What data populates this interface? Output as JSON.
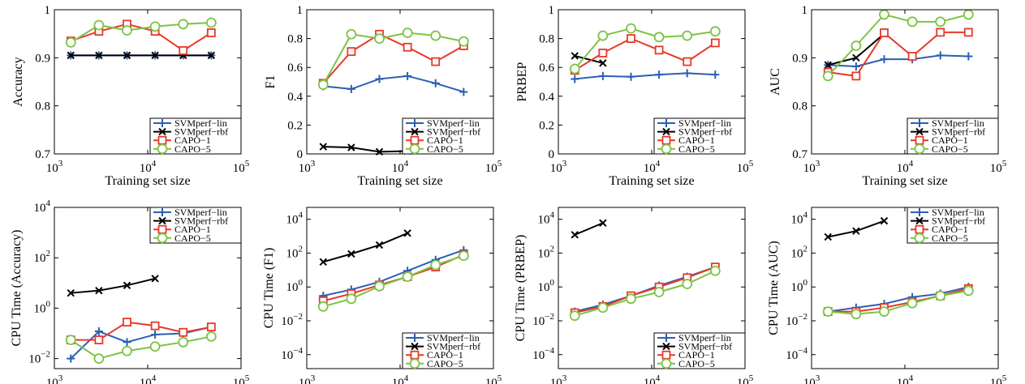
{
  "chart_data": [
    {
      "type": "line",
      "ylabel": "Accuracy",
      "xlabel": "Training set size",
      "log_x": true,
      "log_y": false,
      "legend": "lower right",
      "x": [
        1500,
        3000,
        6000,
        12000,
        24000,
        48000
      ],
      "xlim": [
        1000,
        100000
      ],
      "xticks": [
        {
          "value": 1000,
          "label": "10",
          "sup": "3"
        },
        {
          "value": 10000,
          "label": "10",
          "sup": "4"
        },
        {
          "value": 100000,
          "label": "10",
          "sup": "5"
        }
      ],
      "ylim": [
        0.7,
        1
      ],
      "yticks": [
        0.7,
        0.8,
        0.9,
        1
      ],
      "series": [
        {
          "name": "SVMperf−lin",
          "color": "#2b5fb4",
          "marker": "plus",
          "values": [
            0.905,
            0.905,
            0.905,
            0.905,
            0.905,
            0.905
          ]
        },
        {
          "name": "SVMperf−rbf",
          "color": "#000000",
          "marker": "cross",
          "values": [
            0.905,
            0.905,
            0.905,
            0.905,
            0.905,
            0.905
          ]
        },
        {
          "name": "CAPO−1",
          "color": "#e8392a",
          "marker": "square",
          "values": [
            0.935,
            0.955,
            0.97,
            0.955,
            0.915,
            0.952
          ]
        },
        {
          "name": "CAPO−5",
          "color": "#7cc444",
          "marker": "circle",
          "values": [
            0.932,
            0.968,
            0.957,
            0.965,
            0.97,
            0.973
          ]
        }
      ]
    },
    {
      "type": "line",
      "ylabel": "F1",
      "xlabel": "Training set size",
      "log_x": true,
      "log_y": false,
      "legend": "lower right",
      "x": [
        1500,
        3000,
        6000,
        12000,
        24000,
        48000
      ],
      "xlim": [
        1000,
        100000
      ],
      "xticks": [
        {
          "value": 1000,
          "label": "10",
          "sup": "3"
        },
        {
          "value": 10000,
          "label": "10",
          "sup": "4"
        },
        {
          "value": 100000,
          "label": "10",
          "sup": "5"
        }
      ],
      "ylim": [
        0,
        1
      ],
      "yticks": [
        0,
        0.2,
        0.4,
        0.6,
        0.8,
        1
      ],
      "series": [
        {
          "name": "SVMperf−lin",
          "color": "#2b5fb4",
          "marker": "plus",
          "values": [
            0.47,
            0.45,
            0.52,
            0.54,
            0.49,
            0.43
          ]
        },
        {
          "name": "SVMperf−rbf",
          "color": "#000000",
          "marker": "cross",
          "values": [
            0.05,
            0.045,
            0.015,
            0.02,
            null,
            null
          ]
        },
        {
          "name": "CAPO−1",
          "color": "#e8392a",
          "marker": "square",
          "values": [
            0.49,
            0.71,
            0.83,
            0.74,
            0.64,
            0.75
          ]
        },
        {
          "name": "CAPO−5",
          "color": "#7cc444",
          "marker": "circle",
          "values": [
            0.48,
            0.83,
            0.8,
            0.84,
            0.82,
            0.78
          ]
        }
      ]
    },
    {
      "type": "line",
      "ylabel": "PRBEP",
      "xlabel": "Training set size",
      "log_x": true,
      "log_y": false,
      "legend": "lower right",
      "x": [
        1500,
        3000,
        6000,
        12000,
        24000,
        48000
      ],
      "xlim": [
        1000,
        100000
      ],
      "xticks": [
        {
          "value": 1000,
          "label": "10",
          "sup": "3"
        },
        {
          "value": 10000,
          "label": "10",
          "sup": "4"
        },
        {
          "value": 100000,
          "label": "10",
          "sup": "5"
        }
      ],
      "ylim": [
        0,
        1
      ],
      "yticks": [
        0,
        0.2,
        0.4,
        0.6,
        0.8,
        1
      ],
      "series": [
        {
          "name": "SVMperf−lin",
          "color": "#2b5fb4",
          "marker": "plus",
          "values": [
            0.52,
            0.54,
            0.535,
            0.55,
            0.56,
            0.55
          ]
        },
        {
          "name": "SVMperf−rbf",
          "color": "#000000",
          "marker": "cross",
          "values": [
            0.68,
            0.63,
            null,
            null,
            null,
            null
          ]
        },
        {
          "name": "CAPO−1",
          "color": "#e8392a",
          "marker": "square",
          "values": [
            0.58,
            0.7,
            0.8,
            0.72,
            0.64,
            0.77
          ]
        },
        {
          "name": "CAPO−5",
          "color": "#7cc444",
          "marker": "circle",
          "values": [
            0.59,
            0.82,
            0.87,
            0.81,
            0.82,
            0.85
          ]
        }
      ]
    },
    {
      "type": "line",
      "ylabel": "AUC",
      "xlabel": "Training set size",
      "log_x": true,
      "log_y": false,
      "legend": "lower right",
      "x": [
        1500,
        3000,
        6000,
        12000,
        24000,
        48000
      ],
      "xlim": [
        1000,
        100000
      ],
      "xticks": [
        {
          "value": 1000,
          "label": "10",
          "sup": "3"
        },
        {
          "value": 10000,
          "label": "10",
          "sup": "4"
        },
        {
          "value": 100000,
          "label": "10",
          "sup": "5"
        }
      ],
      "ylim": [
        0.7,
        1
      ],
      "yticks": [
        0.7,
        0.8,
        0.9,
        1
      ],
      "series": [
        {
          "name": "SVMperf−lin",
          "color": "#2b5fb4",
          "marker": "plus",
          "values": [
            0.885,
            0.882,
            0.897,
            0.897,
            0.905,
            0.903
          ]
        },
        {
          "name": "SVMperf−rbf",
          "color": "#000000",
          "marker": "cross",
          "values": [
            0.885,
            0.9,
            0.95,
            null,
            null,
            null
          ]
        },
        {
          "name": "CAPO−1",
          "color": "#e8392a",
          "marker": "square",
          "values": [
            0.87,
            0.862,
            0.952,
            0.903,
            0.953,
            0.953
          ]
        },
        {
          "name": "CAPO−5",
          "color": "#7cc444",
          "marker": "circle",
          "values": [
            0.862,
            0.925,
            0.99,
            0.975,
            0.975,
            0.99
          ]
        }
      ]
    },
    {
      "type": "line",
      "ylabel": "CPU Time (Accuracy)",
      "xlabel": "Training set size",
      "log_x": true,
      "log_y": true,
      "legend": "upper right",
      "x": [
        1500,
        3000,
        6000,
        12000,
        24000,
        48000
      ],
      "xlim": [
        1000,
        100000
      ],
      "xticks": [
        {
          "value": 1000,
          "label": "10",
          "sup": "3"
        },
        {
          "value": 10000,
          "label": "10",
          "sup": "4"
        },
        {
          "value": 100000,
          "label": "10",
          "sup": "5"
        }
      ],
      "ylim": [
        0.004,
        10000
      ],
      "yticks": [
        {
          "value": 0.01,
          "label": "10",
          "sup": "−2"
        },
        {
          "value": 1,
          "label": "10",
          "sup": "0"
        },
        {
          "value": 100,
          "label": "10",
          "sup": "2"
        },
        {
          "value": 10000,
          "label": "10",
          "sup": "4"
        }
      ],
      "series": [
        {
          "name": "SVMperf−lin",
          "color": "#2b5fb4",
          "marker": "plus",
          "values": [
            0.01,
            0.12,
            0.045,
            0.09,
            0.1,
            0.18
          ]
        },
        {
          "name": "SVMperf−rbf",
          "color": "#000000",
          "marker": "cross",
          "values": [
            4,
            5,
            8,
            15,
            null,
            null
          ]
        },
        {
          "name": "CAPO−1",
          "color": "#e8392a",
          "marker": "square",
          "values": [
            0.055,
            0.055,
            0.28,
            0.2,
            0.11,
            0.18
          ]
        },
        {
          "name": "CAPO−5",
          "color": "#7cc444",
          "marker": "circle",
          "values": [
            0.055,
            0.01,
            0.02,
            0.03,
            0.045,
            0.075
          ]
        }
      ]
    },
    {
      "type": "line",
      "ylabel": "CPU Time (F1)",
      "xlabel": "Training set size",
      "log_x": true,
      "log_y": true,
      "legend": "lower right",
      "x": [
        1500,
        3000,
        6000,
        12000,
        24000,
        48000
      ],
      "xlim": [
        1000,
        100000
      ],
      "xticks": [
        {
          "value": 1000,
          "label": "10",
          "sup": "3"
        },
        {
          "value": 10000,
          "label": "10",
          "sup": "4"
        },
        {
          "value": 100000,
          "label": "10",
          "sup": "5"
        }
      ],
      "ylim": [
        1.5e-05,
        50000
      ],
      "yticks": [
        {
          "value": 0.0001,
          "label": "10",
          "sup": "−4"
        },
        {
          "value": 0.01,
          "label": "10",
          "sup": "−2"
        },
        {
          "value": 1,
          "label": "10",
          "sup": "0"
        },
        {
          "value": 100,
          "label": "10",
          "sup": "2"
        },
        {
          "value": 10000,
          "label": "10",
          "sup": "4"
        }
      ],
      "series": [
        {
          "name": "SVMperf−lin",
          "color": "#2b5fb4",
          "marker": "plus",
          "values": [
            0.3,
            0.7,
            2,
            9,
            40,
            150
          ]
        },
        {
          "name": "SVMperf−rbf",
          "color": "#000000",
          "marker": "cross",
          "values": [
            30,
            90,
            300,
            1500,
            null,
            null
          ]
        },
        {
          "name": "CAPO−1",
          "color": "#e8392a",
          "marker": "square",
          "values": [
            0.15,
            0.4,
            1.3,
            4,
            15,
            80
          ]
        },
        {
          "name": "CAPO−5",
          "color": "#7cc444",
          "marker": "circle",
          "values": [
            0.07,
            0.2,
            1.1,
            4,
            20,
            70
          ]
        }
      ]
    },
    {
      "type": "line",
      "ylabel": "CPU Time (PRBEP)",
      "xlabel": "Training set size",
      "log_x": true,
      "log_y": true,
      "legend": "lower right",
      "x": [
        1500,
        3000,
        6000,
        12000,
        24000,
        48000
      ],
      "xlim": [
        1000,
        100000
      ],
      "xticks": [
        {
          "value": 1000,
          "label": "10",
          "sup": "3"
        },
        {
          "value": 10000,
          "label": "10",
          "sup": "4"
        },
        {
          "value": 100000,
          "label": "10",
          "sup": "5"
        }
      ],
      "ylim": [
        1.5e-05,
        50000
      ],
      "yticks": [
        {
          "value": 0.0001,
          "label": "10",
          "sup": "−4"
        },
        {
          "value": 0.01,
          "label": "10",
          "sup": "−2"
        },
        {
          "value": 1,
          "label": "10",
          "sup": "0"
        },
        {
          "value": 100,
          "label": "10",
          "sup": "2"
        },
        {
          "value": 10000,
          "label": "10",
          "sup": "4"
        }
      ],
      "series": [
        {
          "name": "SVMperf−lin",
          "color": "#2b5fb4",
          "marker": "plus",
          "values": [
            0.035,
            0.09,
            0.3,
            1.2,
            4,
            15
          ]
        },
        {
          "name": "SVMperf−rbf",
          "color": "#000000",
          "marker": "cross",
          "values": [
            1200,
            6000,
            null,
            null,
            null,
            null
          ]
        },
        {
          "name": "CAPO−1",
          "color": "#e8392a",
          "marker": "square",
          "values": [
            0.03,
            0.07,
            0.3,
            1,
            3.5,
            15
          ]
        },
        {
          "name": "CAPO−5",
          "color": "#7cc444",
          "marker": "circle",
          "values": [
            0.02,
            0.06,
            0.2,
            0.5,
            1.5,
            9
          ]
        }
      ]
    },
    {
      "type": "line",
      "ylabel": "CPU Time (AUC)",
      "xlabel": "Training set size",
      "log_x": true,
      "log_y": true,
      "legend": "upper right",
      "x": [
        1500,
        3000,
        6000,
        12000,
        24000,
        48000
      ],
      "xlim": [
        1000,
        100000
      ],
      "xticks": [
        {
          "value": 1000,
          "label": "10",
          "sup": "3"
        },
        {
          "value": 10000,
          "label": "10",
          "sup": "4"
        },
        {
          "value": 100000,
          "label": "10",
          "sup": "5"
        }
      ],
      "ylim": [
        1.5e-05,
        50000
      ],
      "yticks": [
        {
          "value": 0.0001,
          "label": "10",
          "sup": "−4"
        },
        {
          "value": 0.01,
          "label": "10",
          "sup": "−2"
        },
        {
          "value": 1,
          "label": "10",
          "sup": "0"
        },
        {
          "value": 100,
          "label": "10",
          "sup": "2"
        },
        {
          "value": 10000,
          "label": "10",
          "sup": "4"
        }
      ],
      "series": [
        {
          "name": "SVMperf−lin",
          "color": "#2b5fb4",
          "marker": "plus",
          "values": [
            0.035,
            0.06,
            0.1,
            0.25,
            0.4,
            1
          ]
        },
        {
          "name": "SVMperf−rbf",
          "color": "#000000",
          "marker": "cross",
          "values": [
            900,
            2000,
            8000,
            null,
            null,
            null
          ]
        },
        {
          "name": "CAPO−1",
          "color": "#e8392a",
          "marker": "square",
          "values": [
            0.035,
            0.035,
            0.06,
            0.13,
            0.3,
            0.8
          ]
        },
        {
          "name": "CAPO−5",
          "color": "#7cc444",
          "marker": "circle",
          "values": [
            0.035,
            0.025,
            0.035,
            0.11,
            0.3,
            0.6
          ]
        }
      ]
    }
  ]
}
